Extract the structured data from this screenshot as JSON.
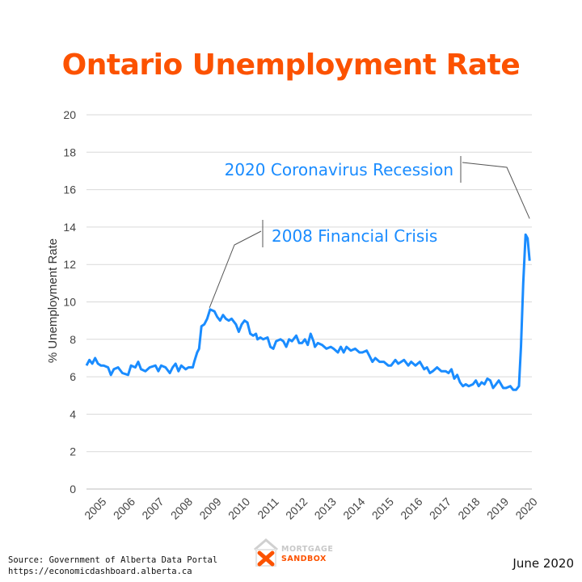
{
  "title": "Ontario Unemployment Rate",
  "source_line1": "Source: Government of Alberta Data Portal",
  "source_line2": "https://economicdashboard.alberta.ca",
  "date_label": "June 2020",
  "logo": {
    "line1": "MORTGAGE",
    "line2": "SANDBOX"
  },
  "colors": {
    "title": "#fc5200",
    "line": "#1a8cff",
    "annotation": "#1a8cff",
    "grid": "#d9d9d9"
  },
  "chart_data": {
    "type": "line",
    "title": "Ontario Unemployment Rate",
    "xlabel": "",
    "ylabel": "% Unemployment Rate",
    "ylim": [
      0,
      20
    ],
    "yticks": [
      0,
      2,
      4,
      6,
      8,
      10,
      12,
      14,
      16,
      18,
      20
    ],
    "xlim": [
      2005,
      2020.5
    ],
    "xticks": [
      "2005",
      "2006",
      "2007",
      "2008",
      "2009",
      "2010",
      "2011",
      "2012",
      "2013",
      "2014",
      "2015",
      "2016",
      "2017",
      "2018",
      "2019",
      "2020"
    ],
    "grid": "horizontal",
    "series": [
      {
        "points": [
          [
            2005.0,
            6.6
          ],
          [
            2005.1,
            6.9
          ],
          [
            2005.2,
            6.7
          ],
          [
            2005.3,
            7.0
          ],
          [
            2005.4,
            6.7
          ],
          [
            2005.5,
            6.6
          ],
          [
            2005.6,
            6.6
          ],
          [
            2005.75,
            6.5
          ],
          [
            2005.85,
            6.1
          ],
          [
            2005.95,
            6.4
          ],
          [
            2006.1,
            6.5
          ],
          [
            2006.25,
            6.2
          ],
          [
            2006.45,
            6.1
          ],
          [
            2006.55,
            6.6
          ],
          [
            2006.7,
            6.5
          ],
          [
            2006.8,
            6.8
          ],
          [
            2006.9,
            6.4
          ],
          [
            2007.05,
            6.3
          ],
          [
            2007.2,
            6.5
          ],
          [
            2007.4,
            6.6
          ],
          [
            2007.5,
            6.3
          ],
          [
            2007.6,
            6.6
          ],
          [
            2007.75,
            6.5
          ],
          [
            2007.9,
            6.2
          ],
          [
            2008.0,
            6.5
          ],
          [
            2008.1,
            6.7
          ],
          [
            2008.2,
            6.3
          ],
          [
            2008.3,
            6.6
          ],
          [
            2008.45,
            6.4
          ],
          [
            2008.55,
            6.5
          ],
          [
            2008.7,
            6.5
          ],
          [
            2008.75,
            6.8
          ],
          [
            2008.85,
            7.3
          ],
          [
            2008.92,
            7.5
          ],
          [
            2009.0,
            8.7
          ],
          [
            2009.1,
            8.8
          ],
          [
            2009.2,
            9.1
          ],
          [
            2009.3,
            9.6
          ],
          [
            2009.45,
            9.5
          ],
          [
            2009.55,
            9.2
          ],
          [
            2009.65,
            9.0
          ],
          [
            2009.75,
            9.3
          ],
          [
            2009.85,
            9.1
          ],
          [
            2009.95,
            9.0
          ],
          [
            2010.05,
            9.1
          ],
          [
            2010.2,
            8.8
          ],
          [
            2010.3,
            8.4
          ],
          [
            2010.4,
            8.8
          ],
          [
            2010.5,
            9.0
          ],
          [
            2010.6,
            8.9
          ],
          [
            2010.7,
            8.3
          ],
          [
            2010.8,
            8.2
          ],
          [
            2010.9,
            8.3
          ],
          [
            2010.95,
            8.0
          ],
          [
            2011.05,
            8.1
          ],
          [
            2011.15,
            8.0
          ],
          [
            2011.3,
            8.1
          ],
          [
            2011.4,
            7.6
          ],
          [
            2011.5,
            7.5
          ],
          [
            2011.6,
            7.9
          ],
          [
            2011.75,
            8.0
          ],
          [
            2011.85,
            7.9
          ],
          [
            2011.95,
            7.6
          ],
          [
            2012.05,
            8.0
          ],
          [
            2012.15,
            7.9
          ],
          [
            2012.3,
            8.2
          ],
          [
            2012.4,
            7.8
          ],
          [
            2012.5,
            7.8
          ],
          [
            2012.6,
            8.0
          ],
          [
            2012.7,
            7.7
          ],
          [
            2012.8,
            8.3
          ],
          [
            2012.9,
            7.9
          ],
          [
            2012.95,
            7.6
          ],
          [
            2013.05,
            7.8
          ],
          [
            2013.2,
            7.7
          ],
          [
            2013.35,
            7.5
          ],
          [
            2013.5,
            7.6
          ],
          [
            2013.6,
            7.5
          ],
          [
            2013.75,
            7.3
          ],
          [
            2013.85,
            7.6
          ],
          [
            2013.95,
            7.3
          ],
          [
            2014.05,
            7.6
          ],
          [
            2014.2,
            7.4
          ],
          [
            2014.35,
            7.5
          ],
          [
            2014.5,
            7.3
          ],
          [
            2014.6,
            7.3
          ],
          [
            2014.75,
            7.4
          ],
          [
            2014.85,
            7.1
          ],
          [
            2014.95,
            6.8
          ],
          [
            2015.05,
            7.0
          ],
          [
            2015.2,
            6.8
          ],
          [
            2015.35,
            6.8
          ],
          [
            2015.5,
            6.6
          ],
          [
            2015.6,
            6.6
          ],
          [
            2015.75,
            6.9
          ],
          [
            2015.85,
            6.7
          ],
          [
            2015.95,
            6.8
          ],
          [
            2016.05,
            6.9
          ],
          [
            2016.2,
            6.6
          ],
          [
            2016.3,
            6.8
          ],
          [
            2016.45,
            6.6
          ],
          [
            2016.6,
            6.8
          ],
          [
            2016.75,
            6.4
          ],
          [
            2016.85,
            6.5
          ],
          [
            2016.95,
            6.2
          ],
          [
            2017.05,
            6.3
          ],
          [
            2017.2,
            6.5
          ],
          [
            2017.35,
            6.3
          ],
          [
            2017.5,
            6.3
          ],
          [
            2017.6,
            6.2
          ],
          [
            2017.7,
            6.4
          ],
          [
            2017.8,
            5.9
          ],
          [
            2017.9,
            6.1
          ],
          [
            2018.0,
            5.7
          ],
          [
            2018.1,
            5.5
          ],
          [
            2018.2,
            5.6
          ],
          [
            2018.3,
            5.5
          ],
          [
            2018.45,
            5.6
          ],
          [
            2018.55,
            5.8
          ],
          [
            2018.65,
            5.5
          ],
          [
            2018.75,
            5.7
          ],
          [
            2018.85,
            5.6
          ],
          [
            2018.95,
            5.9
          ],
          [
            2019.05,
            5.8
          ],
          [
            2019.15,
            5.4
          ],
          [
            2019.25,
            5.6
          ],
          [
            2019.35,
            5.8
          ],
          [
            2019.5,
            5.4
          ],
          [
            2019.6,
            5.4
          ],
          [
            2019.75,
            5.5
          ],
          [
            2019.85,
            5.3
          ],
          [
            2019.95,
            5.3
          ],
          [
            2020.05,
            5.5
          ],
          [
            2020.12,
            7.6
          ],
          [
            2020.2,
            11.0
          ],
          [
            2020.28,
            13.6
          ],
          [
            2020.35,
            13.4
          ],
          [
            2020.42,
            12.2
          ]
        ]
      }
    ],
    "annotations": [
      {
        "text": "2008 Financial Crisis",
        "points_to": [
          2009.28,
          9.6
        ]
      },
      {
        "text": "2020 Coronavirus Recession",
        "points_to": [
          2020.42,
          13.5
        ]
      }
    ]
  }
}
